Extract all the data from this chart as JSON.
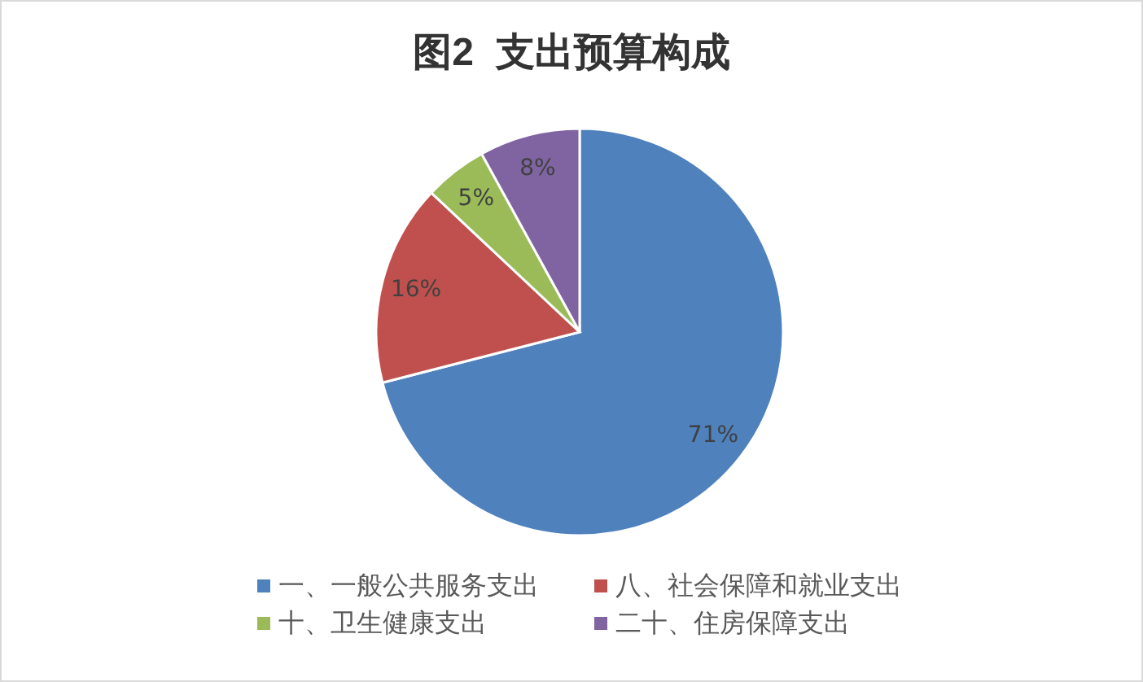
{
  "chart_data": {
    "type": "pie",
    "title": "图2  支出预算构成",
    "categories": [
      "一、一般公共服务支出",
      "八、社会保障和就业支出",
      "十、卫生健康支出",
      "二十、住房保障支出"
    ],
    "values": [
      71,
      16,
      5,
      8
    ],
    "colors": [
      "#4f81bd",
      "#c0504d",
      "#9bbb59",
      "#8064a2"
    ],
    "value_labels": [
      "71%",
      "16%",
      "5%",
      "8%"
    ],
    "legend": "bottom"
  }
}
